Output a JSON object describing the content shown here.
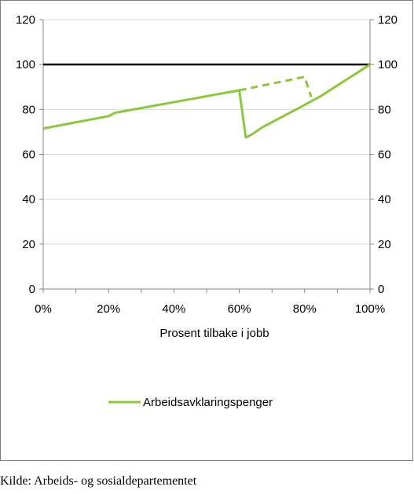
{
  "chart_data": {
    "type": "line",
    "xlabel": "Prosent tilbake i jobb",
    "x_tick_labels": [
      "0%",
      "20%",
      "40%",
      "60%",
      "80%",
      "100%"
    ],
    "y_tick_labels": [
      "0",
      "20",
      "40",
      "60",
      "80",
      "100",
      "120"
    ],
    "y_tick_labels_right": [
      "0",
      "20",
      "40",
      "60",
      "80",
      "100",
      "120"
    ],
    "xlim": [
      0,
      100
    ],
    "ylim": [
      0,
      120
    ],
    "grid": "horizontal",
    "legend_position": "bottom",
    "reference_line": {
      "y": 100,
      "color": "#000000"
    },
    "series": [
      {
        "name": "Arbeidsavklaringspenger",
        "color": "#8dc63f",
        "style": "solid",
        "points": [
          [
            0,
            71.5
          ],
          [
            20,
            77
          ],
          [
            22,
            78.5
          ],
          [
            60,
            88.5
          ],
          [
            62,
            67.5
          ],
          [
            64,
            69
          ],
          [
            67,
            72
          ],
          [
            80,
            82
          ],
          [
            85,
            86
          ],
          [
            100,
            100
          ]
        ]
      },
      {
        "name": "",
        "color": "#8dc63f",
        "style": "dashed",
        "points": [
          [
            60,
            88.5
          ],
          [
            80,
            94.5
          ],
          [
            82,
            85.5
          ]
        ]
      }
    ]
  },
  "source": "Kilde: Arbeids- og sosialdepartementet"
}
